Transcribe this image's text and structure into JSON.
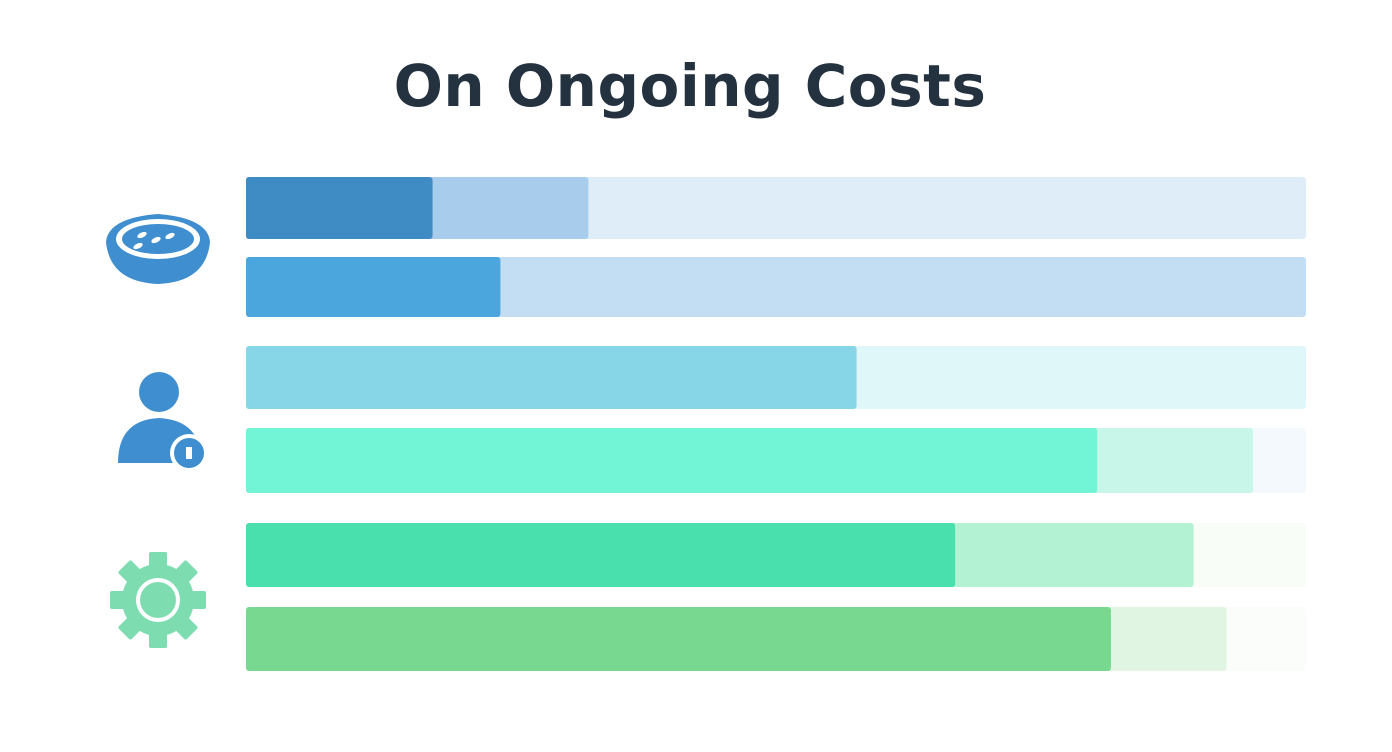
{
  "title": "On Ongoing Costs",
  "chart_data": {
    "type": "bar",
    "orientation": "horizontal",
    "stacked": true,
    "unit": "percent of full track",
    "xlim": [
      0,
      100
    ],
    "grid": false,
    "axes_shown": false,
    "groups": [
      {
        "icon": "food-bowl-icon",
        "icon_color": "#3f8fd0",
        "rows": [
          {
            "primary": 17.6,
            "secondary": 32.3,
            "colors": [
              "#3f8cc4",
              "#a8cdec",
              "#deedf8"
            ]
          },
          {
            "primary": 24.0,
            "secondary": null,
            "colors": [
              "#4ba6dd",
              null,
              "#c3ddf2"
            ]
          }
        ]
      },
      {
        "icon": "user-badge-icon",
        "icon_color": "#3f8fd0",
        "rows": [
          {
            "primary": 57.6,
            "secondary": null,
            "colors": [
              "#86d6e8",
              null,
              "#e0f7f9"
            ]
          },
          {
            "primary": 80.3,
            "secondary": 95.0,
            "colors": [
              "#72f5d6",
              "#c8f7ea",
              "#f3f9fc"
            ]
          }
        ]
      },
      {
        "icon": "gear-icon",
        "icon_color": "#7ddcb0",
        "rows": [
          {
            "primary": 66.9,
            "secondary": 89.4,
            "colors": [
              "#4ae0ae",
              "#b3f3d3",
              "#f8fdf8"
            ]
          },
          {
            "primary": 81.6,
            "secondary": 92.5,
            "colors": [
              "#78d890",
              "#e0f5e2",
              "#fbfdfb"
            ]
          }
        ]
      }
    ]
  }
}
